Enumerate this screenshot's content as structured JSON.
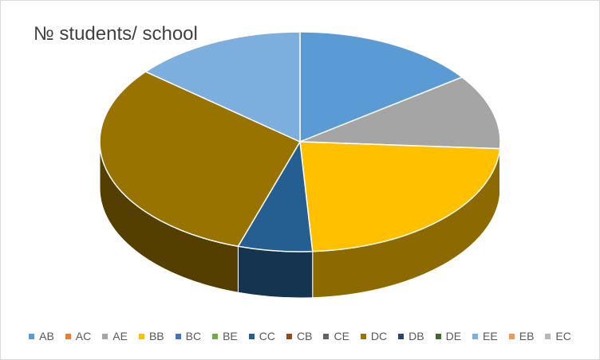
{
  "chart_data": {
    "type": "pie",
    "title": "№ students/ school",
    "three_d": true,
    "legend_position": "bottom",
    "categories": [
      "AB",
      "AC",
      "AE",
      "BB",
      "BC",
      "BE",
      "CC",
      "CB",
      "CE",
      "DC",
      "DB",
      "DE",
      "EE",
      "EB",
      "EC"
    ],
    "values": [
      15,
      0,
      11,
      23,
      0,
      0,
      6,
      0,
      0,
      31,
      0,
      0,
      14,
      0,
      0
    ],
    "colors": [
      "#5b9bd5",
      "#ed7d31",
      "#a5a5a5",
      "#ffc000",
      "#4472c4",
      "#70ad47",
      "#255e91",
      "#9e480e",
      "#636363",
      "#997300",
      "#264478",
      "#43682b",
      "#7cafdd",
      "#f1975a",
      "#b7b7b7"
    ]
  }
}
